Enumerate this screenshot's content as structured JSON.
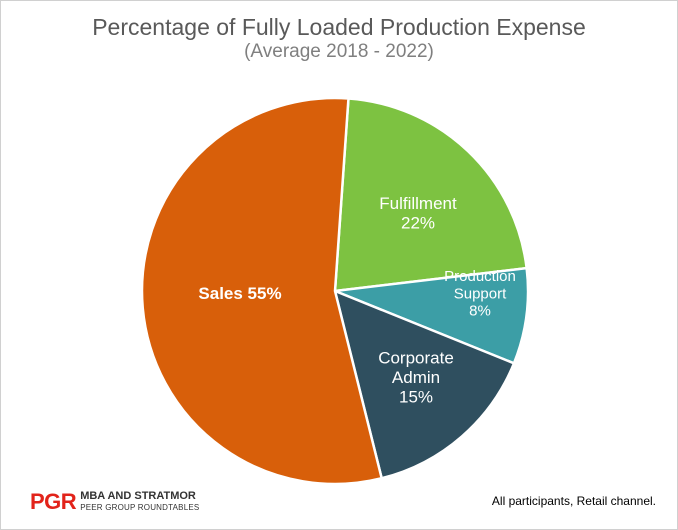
{
  "chart_data": {
    "type": "pie",
    "title": "Percentage of Fully Loaded Production Expense",
    "subtitle": "(Average 2018 - 2022)",
    "slices": [
      {
        "label_lines": [
          "Fulfillment",
          "22%"
        ],
        "value": 22,
        "color": "#7dc241"
      },
      {
        "label_lines": [
          "Production",
          "Support",
          "8%"
        ],
        "value": 8,
        "color": "#3c9ea6"
      },
      {
        "label_lines": [
          "Corporate",
          "Admin",
          "15%"
        ],
        "value": 15,
        "color": "#2f4f5f"
      },
      {
        "label_lines": [
          "Sales 55%"
        ],
        "value": 55,
        "color": "#d85f0a",
        "bold": true
      }
    ],
    "legend": "none"
  },
  "footer": {
    "logo_mark": "PGR",
    "logo_line1": "MBA AND STRATMOR",
    "logo_line2": "PEER GROUP ROUNDTABLES",
    "note": "All participants, Retail channel."
  }
}
